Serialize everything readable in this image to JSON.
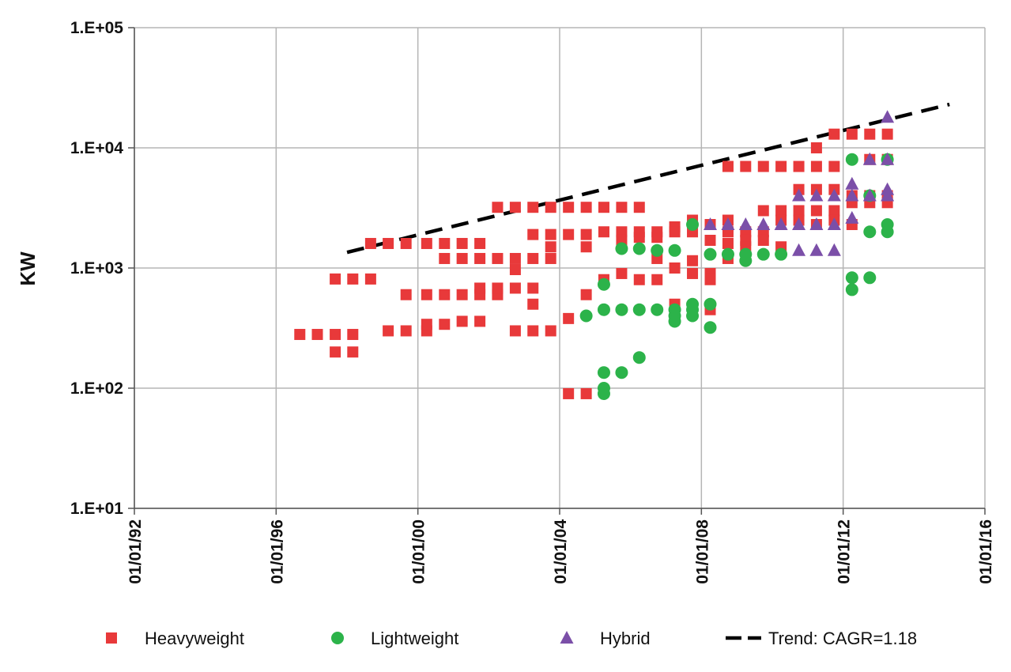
{
  "chart_data": {
    "type": "scatter",
    "title": "",
    "xlabel": "",
    "ylabel": "KW",
    "y_scale": "log",
    "ylim": [
      10,
      100000
    ],
    "xlim": [
      "1992-01-01",
      "2016-01-01"
    ],
    "grid": true,
    "legend_position": "bottom",
    "x_ticks": [
      "01/01/92",
      "01/01/96",
      "01/01/00",
      "01/01/04",
      "01/01/08",
      "01/01/12",
      "01/01/16"
    ],
    "y_ticks": [
      "1.E+01",
      "1.E+02",
      "1.E+03",
      "1.E+04",
      "1.E+05"
    ],
    "series": [
      {
        "name": "Heavyweight",
        "marker": "square",
        "color": "#e8393a",
        "points": [
          [
            "1996-09-01",
            280
          ],
          [
            "1997-03-01",
            280
          ],
          [
            "1997-09-01",
            280
          ],
          [
            "1997-09-01",
            200
          ],
          [
            "1997-09-01",
            810
          ],
          [
            "1998-03-01",
            280
          ],
          [
            "1998-03-01",
            200
          ],
          [
            "1998-03-01",
            810
          ],
          [
            "1998-09-01",
            810
          ],
          [
            "1998-09-01",
            1600
          ],
          [
            "1999-03-01",
            1600
          ],
          [
            "1999-03-01",
            300
          ],
          [
            "1999-09-01",
            1600
          ],
          [
            "1999-09-01",
            300
          ],
          [
            "1999-09-01",
            600
          ],
          [
            "2000-04-01",
            1600
          ],
          [
            "2000-04-01",
            600
          ],
          [
            "2000-04-01",
            300
          ],
          [
            "2000-04-01",
            340
          ],
          [
            "2000-10-01",
            1600
          ],
          [
            "2000-10-01",
            1200
          ],
          [
            "2000-10-01",
            600
          ],
          [
            "2000-10-01",
            340
          ],
          [
            "2001-04-01",
            1600
          ],
          [
            "2001-04-01",
            1200
          ],
          [
            "2001-04-01",
            600
          ],
          [
            "2001-04-01",
            360
          ],
          [
            "2001-10-01",
            1600
          ],
          [
            "2001-10-01",
            1200
          ],
          [
            "2001-10-01",
            600
          ],
          [
            "2001-10-01",
            680
          ],
          [
            "2001-10-01",
            360
          ],
          [
            "2002-04-01",
            3200
          ],
          [
            "2002-04-01",
            1200
          ],
          [
            "2002-04-01",
            600
          ],
          [
            "2002-04-01",
            680
          ],
          [
            "2002-10-01",
            3200
          ],
          [
            "2002-10-01",
            1200
          ],
          [
            "2002-10-01",
            970
          ],
          [
            "2002-10-01",
            680
          ],
          [
            "2002-10-01",
            300
          ],
          [
            "2003-04-01",
            3200
          ],
          [
            "2003-04-01",
            1900
          ],
          [
            "2003-04-01",
            1200
          ],
          [
            "2003-04-01",
            680
          ],
          [
            "2003-04-01",
            500
          ],
          [
            "2003-04-01",
            300
          ],
          [
            "2003-10-01",
            3200
          ],
          [
            "2003-10-01",
            1900
          ],
          [
            "2003-10-01",
            1500
          ],
          [
            "2003-10-01",
            1200
          ],
          [
            "2003-10-01",
            300
          ],
          [
            "2004-04-01",
            3200
          ],
          [
            "2004-04-01",
            1900
          ],
          [
            "2004-04-01",
            380
          ],
          [
            "2004-04-01",
            90
          ],
          [
            "2004-10-01",
            3200
          ],
          [
            "2004-10-01",
            1900
          ],
          [
            "2004-10-01",
            1500
          ],
          [
            "2004-10-01",
            600
          ],
          [
            "2004-10-01",
            90
          ],
          [
            "2005-04-01",
            3200
          ],
          [
            "2005-04-01",
            2000
          ],
          [
            "2005-04-01",
            800
          ],
          [
            "2005-10-01",
            3200
          ],
          [
            "2005-10-01",
            2000
          ],
          [
            "2005-10-01",
            1700
          ],
          [
            "2005-10-01",
            900
          ],
          [
            "2006-04-01",
            3200
          ],
          [
            "2006-04-01",
            2000
          ],
          [
            "2006-04-01",
            1800
          ],
          [
            "2006-04-01",
            800
          ],
          [
            "2006-10-01",
            2000
          ],
          [
            "2006-10-01",
            1800
          ],
          [
            "2006-10-01",
            1200
          ],
          [
            "2006-10-01",
            800
          ],
          [
            "2007-04-01",
            2200
          ],
          [
            "2007-04-01",
            2000
          ],
          [
            "2007-04-01",
            1000
          ],
          [
            "2007-04-01",
            500
          ],
          [
            "2007-10-01",
            2500
          ],
          [
            "2007-10-01",
            2000
          ],
          [
            "2007-10-01",
            1150
          ],
          [
            "2007-10-01",
            900
          ],
          [
            "2008-04-01",
            2300
          ],
          [
            "2008-04-01",
            1700
          ],
          [
            "2008-04-01",
            900
          ],
          [
            "2008-04-01",
            800
          ],
          [
            "2008-04-01",
            450
          ],
          [
            "2008-10-01",
            7000
          ],
          [
            "2008-10-01",
            2500
          ],
          [
            "2008-10-01",
            2000
          ],
          [
            "2008-10-01",
            1600
          ],
          [
            "2008-10-01",
            1200
          ],
          [
            "2009-04-01",
            7000
          ],
          [
            "2009-04-01",
            2000
          ],
          [
            "2009-04-01",
            1700
          ],
          [
            "2009-04-01",
            1500
          ],
          [
            "2009-10-01",
            7000
          ],
          [
            "2009-10-01",
            3000
          ],
          [
            "2009-10-01",
            2000
          ],
          [
            "2009-10-01",
            1700
          ],
          [
            "2010-04-01",
            7000
          ],
          [
            "2010-04-01",
            3000
          ],
          [
            "2010-04-01",
            2500
          ],
          [
            "2010-04-01",
            1500
          ],
          [
            "2010-10-01",
            7000
          ],
          [
            "2010-10-01",
            4500
          ],
          [
            "2010-10-01",
            3000
          ],
          [
            "2010-10-01",
            2500
          ],
          [
            "2011-04-01",
            10000
          ],
          [
            "2011-04-01",
            7000
          ],
          [
            "2011-04-01",
            4500
          ],
          [
            "2011-04-01",
            3000
          ],
          [
            "2011-04-01",
            2300
          ],
          [
            "2011-10-01",
            13000
          ],
          [
            "2011-10-01",
            7000
          ],
          [
            "2011-10-01",
            4500
          ],
          [
            "2011-10-01",
            3000
          ],
          [
            "2011-10-01",
            2500
          ],
          [
            "2012-04-01",
            13000
          ],
          [
            "2012-04-01",
            4000
          ],
          [
            "2012-04-01",
            3500
          ],
          [
            "2012-04-01",
            2300
          ],
          [
            "2012-10-01",
            13000
          ],
          [
            "2012-10-01",
            8000
          ],
          [
            "2012-10-01",
            4000
          ],
          [
            "2012-10-01",
            3500
          ],
          [
            "2013-04-01",
            13000
          ],
          [
            "2013-04-01",
            8000
          ],
          [
            "2013-04-01",
            4000
          ],
          [
            "2013-04-01",
            3500
          ]
        ]
      },
      {
        "name": "Lightweight",
        "marker": "circle",
        "color": "#2cb34a",
        "points": [
          [
            "2004-10-01",
            400
          ],
          [
            "2005-04-01",
            730
          ],
          [
            "2005-04-01",
            450
          ],
          [
            "2005-04-01",
            135
          ],
          [
            "2005-04-01",
            100
          ],
          [
            "2005-04-01",
            90
          ],
          [
            "2005-10-01",
            1450
          ],
          [
            "2005-10-01",
            450
          ],
          [
            "2005-10-01",
            135
          ],
          [
            "2006-04-01",
            1450
          ],
          [
            "2006-04-01",
            450
          ],
          [
            "2006-04-01",
            180
          ],
          [
            "2006-10-01",
            1400
          ],
          [
            "2006-10-01",
            450
          ],
          [
            "2007-04-01",
            1400
          ],
          [
            "2007-04-01",
            450
          ],
          [
            "2007-04-01",
            400
          ],
          [
            "2007-04-01",
            360
          ],
          [
            "2007-10-01",
            2300
          ],
          [
            "2007-10-01",
            500
          ],
          [
            "2007-10-01",
            450
          ],
          [
            "2007-10-01",
            400
          ],
          [
            "2008-04-01",
            1300
          ],
          [
            "2008-04-01",
            500
          ],
          [
            "2008-04-01",
            320
          ],
          [
            "2008-10-01",
            1300
          ],
          [
            "2009-04-01",
            1300
          ],
          [
            "2009-04-01",
            1150
          ],
          [
            "2009-10-01",
            1300
          ],
          [
            "2010-04-01",
            1300
          ],
          [
            "2012-04-01",
            8000
          ],
          [
            "2012-04-01",
            830
          ],
          [
            "2012-04-01",
            660
          ],
          [
            "2012-10-01",
            4000
          ],
          [
            "2012-10-01",
            2000
          ],
          [
            "2012-10-01",
            830
          ],
          [
            "2013-04-01",
            8000
          ],
          [
            "2013-04-01",
            2300
          ],
          [
            "2013-04-01",
            2000
          ]
        ]
      },
      {
        "name": "Hybrid",
        "marker": "triangle",
        "color": "#7b4fa8",
        "points": [
          [
            "2008-04-01",
            2300
          ],
          [
            "2008-10-01",
            2300
          ],
          [
            "2009-04-01",
            2300
          ],
          [
            "2009-10-01",
            2300
          ],
          [
            "2010-04-01",
            2300
          ],
          [
            "2010-10-01",
            4000
          ],
          [
            "2010-10-01",
            2300
          ],
          [
            "2010-10-01",
            1400
          ],
          [
            "2011-04-01",
            4000
          ],
          [
            "2011-04-01",
            2300
          ],
          [
            "2011-04-01",
            1400
          ],
          [
            "2011-10-01",
            4000
          ],
          [
            "2011-10-01",
            2300
          ],
          [
            "2011-10-01",
            1400
          ],
          [
            "2012-04-01",
            5000
          ],
          [
            "2012-04-01",
            4000
          ],
          [
            "2012-04-01",
            2600
          ],
          [
            "2012-10-01",
            8000
          ],
          [
            "2012-10-01",
            4000
          ],
          [
            "2013-04-01",
            18000
          ],
          [
            "2013-04-01",
            8000
          ],
          [
            "2013-04-01",
            4500
          ],
          [
            "2013-04-01",
            4000
          ]
        ]
      },
      {
        "name": "Trend: CAGR=1.18",
        "marker": "dashed-line",
        "color": "#000000",
        "points": [
          [
            "1998-01-01",
            1350
          ],
          [
            "2015-01-01",
            23000
          ]
        ]
      }
    ]
  }
}
